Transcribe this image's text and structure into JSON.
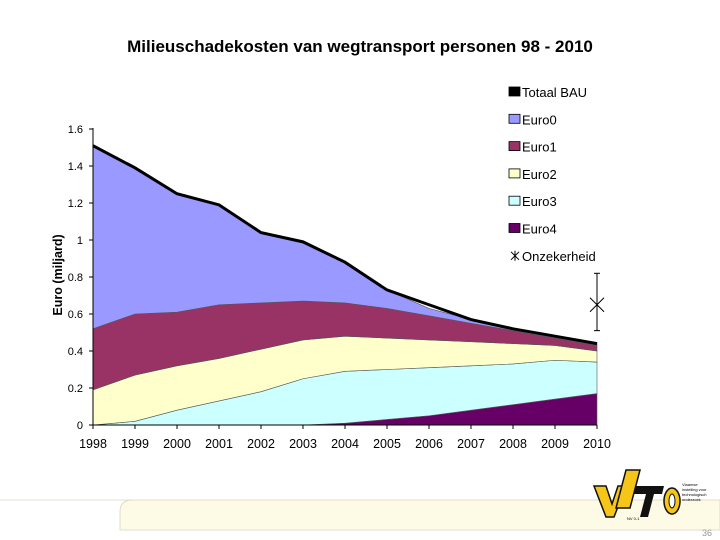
{
  "page_number": "36",
  "logo": {
    "text": "VITO",
    "sub": "NV 0-1",
    "tagline": "Vlaamse instelling voor technologisch onderzoek"
  },
  "colors": {
    "totaal_bau": "#000000",
    "euro0": "#9999ff",
    "euro1": "#993366",
    "euro2": "#ffffcc",
    "euro3": "#ccffff",
    "euro4": "#660066",
    "onzekerheid": "#000000",
    "footer_band": "#fdfbe6"
  },
  "chart_data": {
    "type": "area",
    "title": "Milieuschadekosten van wegtransport personen  98 - 2010",
    "ylabel": "Euro (miljard)",
    "xlabel": "",
    "categories": [
      "1998",
      "1999",
      "2000",
      "2001",
      "2002",
      "2003",
      "2004",
      "2005",
      "2006",
      "2007",
      "2008",
      "2009",
      "2010"
    ],
    "ylim": [
      0,
      1.6
    ],
    "y_ticks": [
      "0",
      "0.2",
      "0.4",
      "0.6",
      "0.8",
      "1",
      "1.2",
      "1.4",
      "1.6"
    ],
    "stacked": true,
    "grid": false,
    "legend_position": "top-right",
    "series": [
      {
        "name": "Euro4",
        "values": [
          0,
          0,
          0,
          0,
          0,
          0,
          0.01,
          0.03,
          0.05,
          0.08,
          0.11,
          0.14,
          0.17
        ]
      },
      {
        "name": "Euro3",
        "values": [
          0,
          0.02,
          0.08,
          0.13,
          0.18,
          0.25,
          0.28,
          0.27,
          0.26,
          0.24,
          0.22,
          0.21,
          0.17
        ]
      },
      {
        "name": "Euro2",
        "values": [
          0.19,
          0.25,
          0.24,
          0.23,
          0.23,
          0.21,
          0.19,
          0.17,
          0.15,
          0.13,
          0.11,
          0.08,
          0.06
        ]
      },
      {
        "name": "Euro1",
        "values": [
          0.33,
          0.33,
          0.29,
          0.29,
          0.25,
          0.21,
          0.18,
          0.16,
          0.13,
          0.1,
          0.07,
          0.04,
          0.03
        ]
      },
      {
        "name": "Euro0",
        "values": [
          0.99,
          0.79,
          0.64,
          0.54,
          0.38,
          0.32,
          0.22,
          0.1,
          0.04,
          0.02,
          0.01,
          0.01,
          0.01
        ]
      }
    ],
    "totaal_bau": {
      "name": "Totaal BAU",
      "values": [
        1.51,
        1.39,
        1.25,
        1.19,
        1.04,
        0.99,
        0.88,
        0.73,
        0.65,
        0.57,
        0.52,
        0.48,
        0.44
      ]
    },
    "onzekerheid": {
      "name": "Onzekerheid",
      "x": "2010",
      "low": 0.51,
      "high": 0.82,
      "marker": 0.65
    },
    "legend": [
      "Totaal BAU",
      "Euro0",
      "Euro1",
      "Euro2",
      "Euro3",
      "Euro4",
      "Onzekerheid"
    ]
  }
}
